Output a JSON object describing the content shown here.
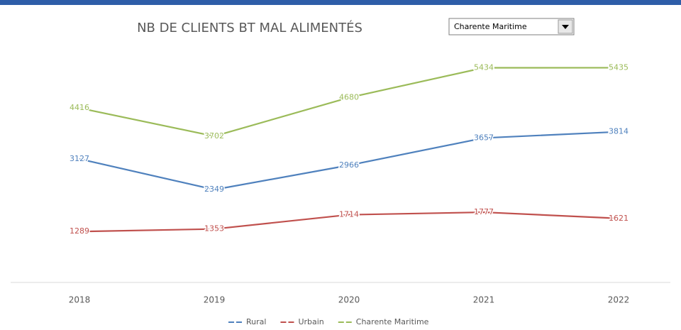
{
  "chart_data": {
    "type": "line",
    "title": "NB DE CLIENTS BT MAL ALIMENTÉS",
    "dropdown": "Charente Maritime",
    "categories": [
      "2018",
      "2019",
      "2020",
      "2021",
      "2022"
    ],
    "series": [
      {
        "name": "Rural",
        "color": "#4f81bd",
        "values": [
          3127,
          2349,
          2966,
          3657,
          3814
        ]
      },
      {
        "name": "Urbain",
        "color": "#c0504d",
        "values": [
          1289,
          1353,
          1714,
          1777,
          1621
        ]
      },
      {
        "name": "Charente Maritime",
        "color": "#9bbb59",
        "values": [
          4416,
          3702,
          4680,
          5434,
          5435
        ]
      }
    ],
    "ylim": [
      0,
      6000
    ],
    "legend": "bottom"
  }
}
